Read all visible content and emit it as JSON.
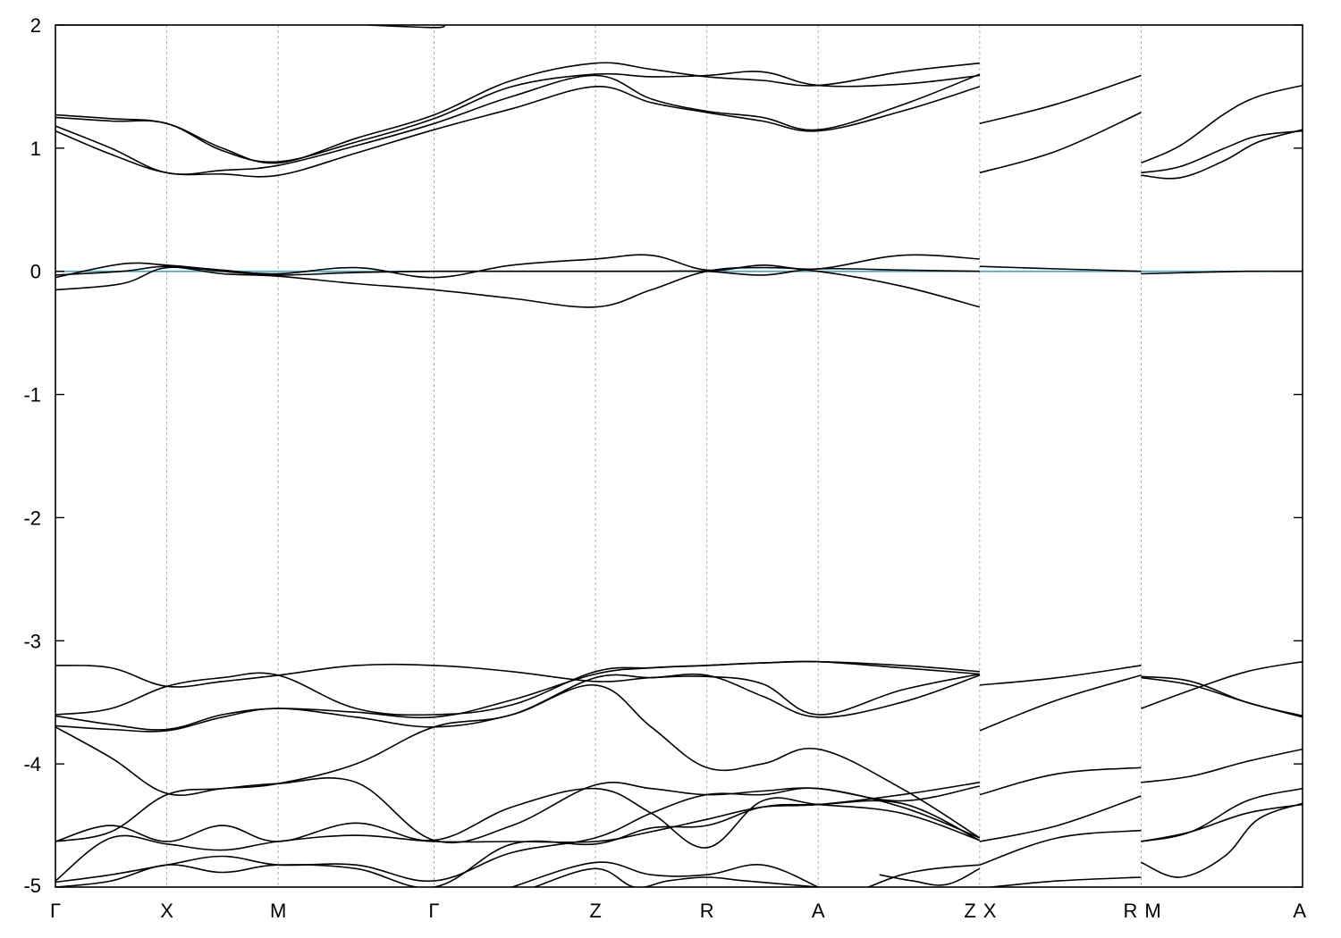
{
  "chart_data": {
    "type": "line",
    "title": "",
    "xlabel": "",
    "ylabel": "",
    "ylim": [
      -5,
      2
    ],
    "yticks": [
      -5,
      -4,
      -3,
      -2,
      -1,
      0,
      1,
      2
    ],
    "grid": "vertical dashed lines at high-symmetry points",
    "fermi_level": {
      "y": 0,
      "color": "#4aa8c0"
    },
    "x_range": [
      0,
      11.2
    ],
    "kpoints": [
      {
        "label": "Γ",
        "x": 0.0
      },
      {
        "label": "X",
        "x": 1.0
      },
      {
        "label": "M",
        "x": 2.0
      },
      {
        "label": "Γ",
        "x": 3.4
      },
      {
        "label": "Z",
        "x": 4.85
      },
      {
        "label": "R",
        "x": 5.85
      },
      {
        "label": "A",
        "x": 6.85
      },
      {
        "label": "Z",
        "x": 8.3
      },
      {
        "label": "X",
        "x": 8.3
      },
      {
        "label": "R",
        "x": 9.75
      },
      {
        "label": "M",
        "x": 9.75
      },
      {
        "label": "A",
        "x": 11.2
      }
    ],
    "series": [
      {
        "x": [
          0,
          0.5,
          1.0
        ],
        "values": [
          2.0,
          2.0,
          2.0
        ]
      },
      {
        "x": [
          2.8,
          3.4,
          3.5
        ],
        "values": [
          2.0,
          1.98,
          2.0
        ]
      },
      {
        "x": [
          0,
          0.5,
          1.0,
          1.5,
          2.0,
          2.7,
          3.4,
          4.1,
          4.85,
          5.35,
          5.85,
          6.35,
          6.85,
          7.6,
          8.3
        ],
        "values": [
          1.27,
          1.24,
          1.2,
          1.0,
          0.88,
          1.08,
          1.27,
          1.55,
          1.69,
          1.64,
          1.58,
          1.55,
          1.51,
          1.62,
          1.69
        ]
      },
      {
        "x": [
          0,
          0.5,
          1.0,
          1.5,
          2.0,
          2.7,
          3.4,
          4.1,
          4.85,
          5.35,
          5.85,
          6.35,
          6.85,
          7.6,
          8.3
        ],
        "values": [
          1.25,
          1.22,
          1.2,
          0.98,
          0.89,
          1.05,
          1.24,
          1.5,
          1.6,
          1.58,
          1.59,
          1.62,
          1.51,
          1.52,
          1.59
        ]
      },
      {
        "x": [
          0,
          0.5,
          1.0,
          1.5,
          2.0,
          2.7,
          3.4,
          4.1,
          4.85,
          5.35,
          5.85,
          6.35,
          6.85,
          7.6,
          8.3
        ],
        "values": [
          1.18,
          1.0,
          0.8,
          0.82,
          0.86,
          1.02,
          1.2,
          1.42,
          1.59,
          1.4,
          1.3,
          1.25,
          1.15,
          1.35,
          1.6
        ]
      },
      {
        "x": [
          0,
          0.5,
          1.0,
          1.5,
          2.0,
          2.7,
          3.4,
          4.1,
          4.85,
          5.35,
          5.85,
          6.35,
          6.85,
          7.6,
          8.3
        ],
        "values": [
          1.14,
          0.95,
          0.8,
          0.79,
          0.78,
          0.96,
          1.15,
          1.32,
          1.5,
          1.37,
          1.29,
          1.22,
          1.14,
          1.3,
          1.5
        ]
      },
      {
        "x": [
          0,
          0.6,
          1.0,
          1.5,
          2.0,
          2.7,
          3.4,
          4.1,
          4.85,
          5.35,
          5.85,
          6.35,
          6.85,
          7.6,
          8.3
        ],
        "values": [
          -0.05,
          0.06,
          0.05,
          0.01,
          -0.02,
          0.03,
          -0.05,
          0.05,
          0.1,
          0.13,
          0.01,
          0.05,
          0.02,
          0.13,
          0.1
        ]
      },
      {
        "x": [
          0,
          0.6,
          1.0,
          1.5,
          2.0,
          2.7,
          3.4,
          4.1,
          4.85,
          5.35,
          5.85,
          6.35,
          6.85,
          7.6,
          8.3
        ],
        "values": [
          -0.03,
          0.0,
          0.04,
          0.0,
          -0.03,
          -0.01,
          0.0,
          0.0,
          0.0,
          0.0,
          0.0,
          -0.03,
          0.02,
          0.01,
          0.0
        ]
      },
      {
        "x": [
          0,
          0.6,
          1.0,
          1.5,
          2.0,
          2.7,
          3.4,
          4.1,
          4.85,
          5.35,
          5.85,
          6.35,
          6.85,
          7.6,
          8.3
        ],
        "values": [
          -0.15,
          -0.1,
          0.03,
          -0.02,
          -0.04,
          -0.1,
          -0.15,
          -0.22,
          -0.29,
          -0.15,
          0.0,
          0.03,
          0.0,
          -0.12,
          -0.29
        ]
      },
      {
        "x": [
          0,
          0.5,
          1.0,
          1.5,
          2.0,
          2.7,
          3.4,
          4.1,
          4.85,
          5.35,
          5.85,
          6.35,
          6.85,
          7.6,
          8.3
        ],
        "values": [
          -3.2,
          -3.22,
          -3.37,
          -3.33,
          -3.28,
          -3.2,
          -3.2,
          -3.25,
          -3.33,
          -3.3,
          -3.29,
          -3.35,
          -3.6,
          -3.4,
          -3.27
        ]
      },
      {
        "x": [
          0,
          0.5,
          1.0,
          1.5,
          2.0,
          2.7,
          3.4,
          4.1,
          4.85,
          5.35,
          5.85,
          6.35,
          6.85,
          7.6,
          8.3
        ],
        "values": [
          -3.6,
          -3.55,
          -3.37,
          -3.3,
          -3.28,
          -3.55,
          -3.6,
          -3.52,
          -3.25,
          -3.22,
          -3.2,
          -3.18,
          -3.17,
          -3.2,
          -3.25
        ]
      },
      {
        "x": [
          0,
          0.5,
          1.0,
          1.5,
          2.0,
          2.7,
          3.4,
          4.1,
          4.85,
          5.35,
          5.85,
          6.35,
          6.85,
          7.6,
          8.3
        ],
        "values": [
          -3.61,
          -3.68,
          -3.72,
          -3.6,
          -3.55,
          -3.58,
          -3.62,
          -3.48,
          -3.27,
          -3.22,
          -3.2,
          -3.18,
          -3.17,
          -3.22,
          -3.27
        ]
      },
      {
        "x": [
          0,
          0.5,
          1.0,
          1.5,
          2.0,
          2.7,
          3.4,
          4.1,
          4.85,
          5.35,
          5.85,
          6.35,
          6.85,
          7.6,
          8.3
        ],
        "values": [
          -3.69,
          -3.72,
          -3.73,
          -3.62,
          -3.55,
          -3.62,
          -3.7,
          -3.6,
          -3.36,
          -3.7,
          -4.03,
          -4.0,
          -3.88,
          -4.2,
          -4.6
        ]
      },
      {
        "x": [
          0,
          0.5,
          1.0,
          1.5,
          2.0,
          2.7,
          3.4,
          4.1,
          4.85,
          5.35,
          5.85,
          6.35,
          6.85,
          7.6,
          8.3
        ],
        "values": [
          -3.7,
          -3.95,
          -4.24,
          -4.2,
          -4.16,
          -4.0,
          -3.7,
          -3.6,
          -3.3,
          -3.3,
          -3.28,
          -3.45,
          -3.62,
          -3.5,
          -3.28
        ]
      },
      {
        "x": [
          0,
          0.5,
          1.0,
          1.5,
          2.0,
          2.7,
          3.4,
          4.1,
          4.85,
          5.35,
          5.85,
          6.35,
          6.85,
          7.6,
          8.3
        ],
        "values": [
          -4.63,
          -4.55,
          -4.25,
          -4.2,
          -4.16,
          -4.15,
          -4.62,
          -4.5,
          -4.17,
          -4.2,
          -4.25,
          -4.22,
          -4.2,
          -4.3,
          -4.18
        ]
      },
      {
        "x": [
          0,
          0.5,
          1.0,
          1.5,
          2.0,
          2.7,
          3.4,
          4.1,
          4.85,
          5.35,
          5.85,
          6.35,
          6.85,
          7.6,
          8.3
        ],
        "values": [
          -4.63,
          -4.5,
          -4.63,
          -4.5,
          -4.63,
          -4.48,
          -4.62,
          -4.35,
          -4.2,
          -4.4,
          -4.68,
          -4.3,
          -4.33,
          -4.4,
          -4.62
        ]
      },
      {
        "x": [
          0,
          0.5,
          1.0,
          1.5,
          2.0,
          2.7,
          3.4,
          4.1,
          4.85,
          5.35,
          5.85,
          6.35,
          6.85,
          7.6,
          8.3
        ],
        "values": [
          -4.95,
          -4.6,
          -4.65,
          -4.7,
          -4.63,
          -4.58,
          -4.63,
          -4.63,
          -4.63,
          -4.55,
          -4.45,
          -4.35,
          -4.33,
          -4.25,
          -4.15
        ]
      },
      {
        "x": [
          0,
          0.5,
          1.0,
          1.5,
          2.0,
          2.7,
          3.4,
          4.1,
          4.85,
          5.35,
          5.85,
          6.35,
          6.85,
          7.6,
          8.3
        ],
        "values": [
          -4.96,
          -4.9,
          -4.82,
          -4.75,
          -4.82,
          -4.82,
          -4.95,
          -4.72,
          -4.6,
          -4.4,
          -4.25,
          -4.25,
          -4.2,
          -4.35,
          -4.6
        ]
      },
      {
        "x": [
          0,
          0.5,
          1.0,
          1.5,
          2.0,
          2.7,
          3.4,
          4.1,
          4.85,
          5.35,
          5.85,
          6.35,
          6.85,
          7.6,
          8.3
        ],
        "values": [
          -5.0,
          -4.95,
          -4.82,
          -4.88,
          -4.82,
          -4.85,
          -5.0,
          -4.65,
          -4.65,
          -4.52,
          -4.5,
          -4.35,
          -4.33,
          -4.32,
          -4.62
        ]
      },
      {
        "x": [
          4.1,
          4.85,
          5.35,
          5.85,
          6.35,
          6.85
        ],
        "values": [
          -5.0,
          -4.8,
          -4.9,
          -4.9,
          -4.82,
          -5.0
        ]
      },
      {
        "x": [
          4.3,
          4.85,
          5.2,
          5.5,
          5.85,
          6.2,
          6.85
        ],
        "values": [
          -5.0,
          -4.85,
          -5.0,
          -4.95,
          -4.92,
          -4.95,
          -5.0
        ]
      },
      {
        "x": [
          7.3,
          7.6,
          7.9,
          8.3
        ],
        "values": [
          -5.0,
          -4.9,
          -4.85,
          -4.82
        ]
      },
      {
        "x": [
          7.4,
          7.7,
          8.0,
          8.3
        ],
        "values": [
          -4.9,
          -4.95,
          -4.98,
          -4.85
        ]
      },
      {
        "x": [
          8.3,
          9.0,
          9.75
        ],
        "values": [
          1.2,
          1.36,
          1.59
        ]
      },
      {
        "x": [
          8.3,
          9.0,
          9.75
        ],
        "values": [
          0.8,
          0.98,
          1.29
        ]
      },
      {
        "x": [
          8.3,
          9.0,
          9.75
        ],
        "values": [
          0.04,
          0.02,
          0.0
        ]
      },
      {
        "x": [
          8.3,
          9.0,
          9.75
        ],
        "values": [
          -3.36,
          -3.3,
          -3.2
        ]
      },
      {
        "x": [
          8.3,
          9.0,
          9.75
        ],
        "values": [
          -3.73,
          -3.48,
          -3.28
        ]
      },
      {
        "x": [
          8.3,
          9.0,
          9.75
        ],
        "values": [
          -4.25,
          -4.08,
          -4.03
        ]
      },
      {
        "x": [
          8.3,
          9.0,
          9.75
        ],
        "values": [
          -4.63,
          -4.5,
          -4.26
        ]
      },
      {
        "x": [
          8.3,
          9.0,
          9.75
        ],
        "values": [
          -4.82,
          -4.6,
          -4.54
        ]
      },
      {
        "x": [
          8.4,
          9.0,
          9.75
        ],
        "values": [
          -5.0,
          -4.95,
          -4.92
        ]
      },
      {
        "x": [
          9.75,
          10.1,
          10.5,
          10.8,
          11.2
        ],
        "values": [
          0.88,
          1.02,
          1.28,
          1.42,
          1.51
        ]
      },
      {
        "x": [
          9.75,
          10.1,
          10.5,
          10.8,
          11.2
        ],
        "values": [
          0.8,
          0.85,
          1.0,
          1.1,
          1.14
        ]
      },
      {
        "x": [
          9.75,
          10.1,
          10.5,
          10.8,
          11.2
        ],
        "values": [
          0.78,
          0.76,
          0.9,
          1.05,
          1.15
        ]
      },
      {
        "x": [
          9.75,
          10.2,
          10.7,
          11.2
        ],
        "values": [
          -0.02,
          -0.01,
          0.0,
          0.0
        ]
      },
      {
        "x": [
          9.75,
          10.2,
          10.7,
          11.2
        ],
        "values": [
          -3.29,
          -3.33,
          -3.5,
          -3.61
        ]
      },
      {
        "x": [
          9.75,
          10.2,
          10.7,
          11.2
        ],
        "values": [
          -3.3,
          -3.36,
          -3.5,
          -3.62
        ]
      },
      {
        "x": [
          9.75,
          10.2,
          10.7,
          11.2
        ],
        "values": [
          -3.55,
          -3.4,
          -3.25,
          -3.17
        ]
      },
      {
        "x": [
          9.75,
          10.2,
          10.7,
          11.2
        ],
        "values": [
          -4.15,
          -4.1,
          -3.98,
          -3.88
        ]
      },
      {
        "x": [
          9.75,
          10.2,
          10.7,
          11.2
        ],
        "values": [
          -4.63,
          -4.55,
          -4.3,
          -4.2
        ]
      },
      {
        "x": [
          9.75,
          10.2,
          10.7,
          11.2
        ],
        "values": [
          -4.63,
          -4.55,
          -4.4,
          -4.33
        ]
      },
      {
        "x": [
          9.75,
          10.1,
          10.5,
          10.8,
          11.2
        ],
        "values": [
          -4.8,
          -4.92,
          -4.75,
          -4.45,
          -4.32
        ]
      }
    ]
  }
}
